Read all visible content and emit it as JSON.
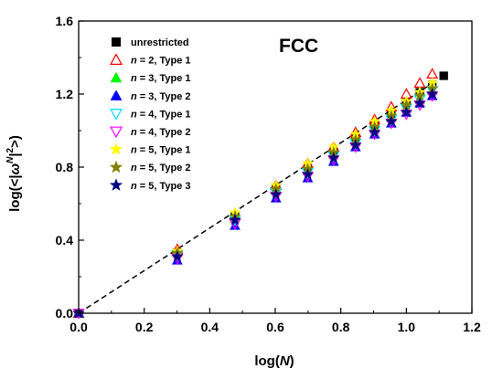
{
  "chart_data": {
    "type": "scatter",
    "title": "",
    "annotation": "FCC",
    "xlabel": "log(N)",
    "ylabel": "log(<|ω^N|²>)",
    "xlim": [
      0.0,
      1.2
    ],
    "ylim": [
      0.0,
      1.6
    ],
    "xticks": [
      "0.0",
      "0.2",
      "0.4",
      "0.6",
      "0.8",
      "1.0",
      "1.2"
    ],
    "yticks": [
      "0.0",
      "0.4",
      "0.8",
      "1.2",
      "1.6"
    ],
    "grid": false,
    "legend_position": "top-left",
    "x": [
      0.0,
      0.301,
      0.477,
      0.602,
      0.699,
      0.778,
      0.845,
      0.903,
      0.954,
      1.0,
      1.041,
      1.079,
      1.114
    ],
    "fit_line": {
      "style": "dashed",
      "color": "#000000",
      "x": [
        0.0,
        1.08
      ],
      "y": [
        0.0,
        1.26
      ]
    },
    "series": [
      {
        "name": "unrestricted",
        "n_label": "",
        "type_label": "unrestricted",
        "marker": "square",
        "filled": true,
        "color": "#000000",
        "x": [
          0.0,
          0.301,
          0.477,
          0.602,
          0.699,
          0.778,
          0.845,
          0.903,
          0.954,
          1.0,
          1.041,
          1.079,
          1.114
        ],
        "y": [
          0.0,
          0.33,
          0.53,
          0.68,
          0.79,
          0.88,
          0.96,
          1.03,
          1.09,
          1.15,
          1.21,
          1.25,
          1.3
        ]
      },
      {
        "name": "n = 2, Type 1",
        "n_label": "n",
        "type_label": " = 2, Type 1",
        "marker": "triangle-up",
        "filled": false,
        "color": "#ff0000",
        "x": [
          0.0,
          0.301,
          0.477,
          0.602,
          0.699,
          0.778,
          0.845,
          0.903,
          0.954,
          1.0,
          1.041,
          1.079
        ],
        "y": [
          0.0,
          0.35,
          0.54,
          0.7,
          0.82,
          0.91,
          0.99,
          1.06,
          1.13,
          1.2,
          1.26,
          1.31
        ]
      },
      {
        "name": "n = 3, Type 1",
        "n_label": "n",
        "type_label": " = 3, Type 1",
        "marker": "triangle-up",
        "filled": true,
        "color": "#00ff00",
        "x": [
          0.0,
          0.301,
          0.477,
          0.602,
          0.699,
          0.778,
          0.845,
          0.903,
          0.954,
          1.0,
          1.041,
          1.079
        ],
        "y": [
          0.0,
          0.33,
          0.52,
          0.67,
          0.78,
          0.87,
          0.94,
          1.01,
          1.07,
          1.12,
          1.17,
          1.22
        ]
      },
      {
        "name": "n = 3, Type 2",
        "n_label": "n",
        "type_label": " = 3, Type 2",
        "marker": "triangle-up",
        "filled": true,
        "color": "#0000ff",
        "x": [
          0.0,
          0.301,
          0.477,
          0.602,
          0.699,
          0.778,
          0.845,
          0.903,
          0.954,
          1.0,
          1.041,
          1.079
        ],
        "y": [
          0.0,
          0.29,
          0.48,
          0.63,
          0.74,
          0.83,
          0.91,
          0.98,
          1.04,
          1.1,
          1.15,
          1.19
        ]
      },
      {
        "name": "n = 4, Type 1",
        "n_label": "n",
        "type_label": " = 4, Type 1",
        "marker": "triangle-down",
        "filled": false,
        "color": "#00e5ff",
        "x": [
          0.0,
          0.301,
          0.477,
          0.602,
          0.699,
          0.778,
          0.845,
          0.903,
          0.954,
          1.0,
          1.041,
          1.079
        ],
        "y": [
          0.0,
          0.32,
          0.51,
          0.66,
          0.77,
          0.86,
          0.93,
          1.0,
          1.06,
          1.12,
          1.17,
          1.22
        ]
      },
      {
        "name": "n = 4, Type 2",
        "n_label": "n",
        "type_label": " = 4, Type 2",
        "marker": "triangle-down",
        "filled": false,
        "color": "#ff00ff",
        "x": [
          0.0,
          0.301,
          0.477,
          0.602,
          0.699,
          0.778,
          0.845,
          0.903,
          0.954,
          1.0,
          1.041,
          1.079
        ],
        "y": [
          0.0,
          0.3,
          0.49,
          0.64,
          0.75,
          0.84,
          0.91,
          0.98,
          1.04,
          1.09,
          1.14,
          1.19
        ]
      },
      {
        "name": "n = 5, Type 1",
        "n_label": "n",
        "type_label": " = 5, Type 1",
        "marker": "star",
        "filled": true,
        "color": "#ffff00",
        "x": [
          0.0,
          0.301,
          0.477,
          0.602,
          0.699,
          0.778,
          0.845,
          0.903,
          0.954,
          1.0,
          1.041,
          1.079
        ],
        "y": [
          0.0,
          0.34,
          0.55,
          0.7,
          0.82,
          0.91,
          0.98,
          1.05,
          1.11,
          1.16,
          1.21,
          1.26
        ]
      },
      {
        "name": "n = 5, Type 2",
        "n_label": "n",
        "type_label": " = 5, Type 2",
        "marker": "star",
        "filled": true,
        "color": "#808000",
        "x": [
          0.0,
          0.301,
          0.477,
          0.602,
          0.699,
          0.778,
          0.845,
          0.903,
          0.954,
          1.0,
          1.041,
          1.079
        ],
        "y": [
          0.0,
          0.33,
          0.53,
          0.68,
          0.79,
          0.88,
          0.95,
          1.02,
          1.08,
          1.14,
          1.19,
          1.23
        ]
      },
      {
        "name": "n = 5, Type 3",
        "n_label": "n",
        "type_label": " = 5, Type 3",
        "marker": "star",
        "filled": true,
        "color": "#000080",
        "x": [
          0.0,
          0.301,
          0.477,
          0.602,
          0.699,
          0.778,
          0.845,
          0.903,
          0.954,
          1.0,
          1.041,
          1.079
        ],
        "y": [
          0.0,
          0.31,
          0.51,
          0.65,
          0.76,
          0.85,
          0.92,
          0.99,
          1.05,
          1.1,
          1.15,
          1.2
        ]
      }
    ]
  }
}
